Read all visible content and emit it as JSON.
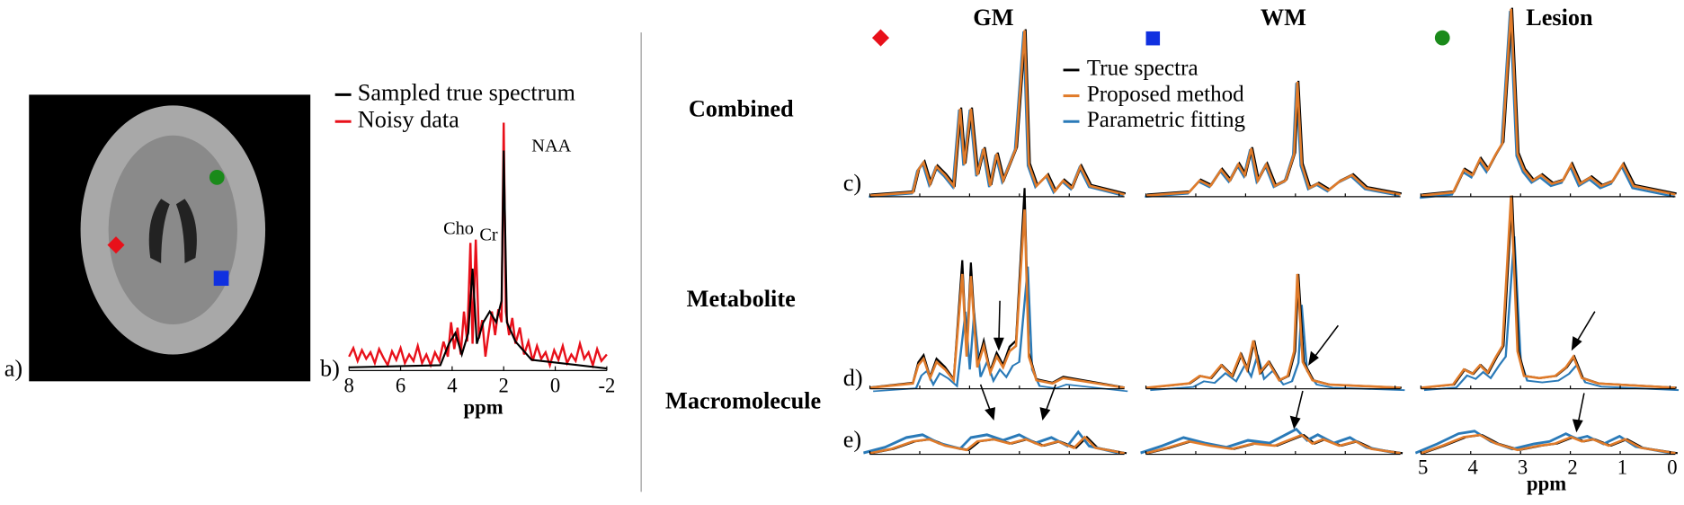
{
  "figure": {
    "panel_labels": [
      "a)",
      "b)",
      "c)",
      "d)",
      "e)"
    ],
    "spectrum_b": {
      "legend": [
        "Sampled true spectrum",
        "Noisy data"
      ],
      "peaks": [
        "NAA",
        "Cho",
        "Cr"
      ],
      "xlabel": "ppm",
      "xlim": [
        8,
        -2
      ],
      "xticks": [
        8,
        6,
        4,
        2,
        0,
        -2
      ]
    },
    "columns": [
      "GM",
      "WM",
      "Lesion"
    ],
    "rows": [
      "Combined",
      "Metabolite",
      "Macromolecule"
    ],
    "legend": [
      "True spectra",
      "Proposed method",
      "Parametric fitting"
    ],
    "axis": {
      "xlabel": "ppm",
      "xlim": [
        5,
        0
      ],
      "xticks": [
        5,
        4,
        3,
        2,
        1,
        0
      ]
    }
  }
}
